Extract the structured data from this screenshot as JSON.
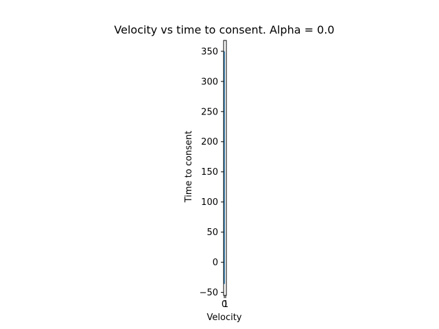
{
  "chart_data": {
    "type": "line",
    "title": "Velocity vs time to consent. Alpha = 0.0",
    "xlabel": "Velocity",
    "ylabel": "Time to consent",
    "xlim": [
      -0.5,
      1.5
    ],
    "ylim": [
      -55,
      368
    ],
    "x_ticks": [
      0,
      1
    ],
    "x_tick_labels": [
      "0",
      "1"
    ],
    "y_ticks": [
      -50,
      0,
      50,
      100,
      150,
      200,
      250,
      300,
      350
    ],
    "y_tick_labels": [
      "−50",
      "0",
      "50",
      "100",
      "150",
      "200",
      "250",
      "300",
      "350"
    ],
    "grid": false,
    "series": [
      {
        "color": "#1f77b4",
        "x": [
          0,
          0
        ],
        "y": [
          -36,
          350
        ]
      }
    ]
  }
}
